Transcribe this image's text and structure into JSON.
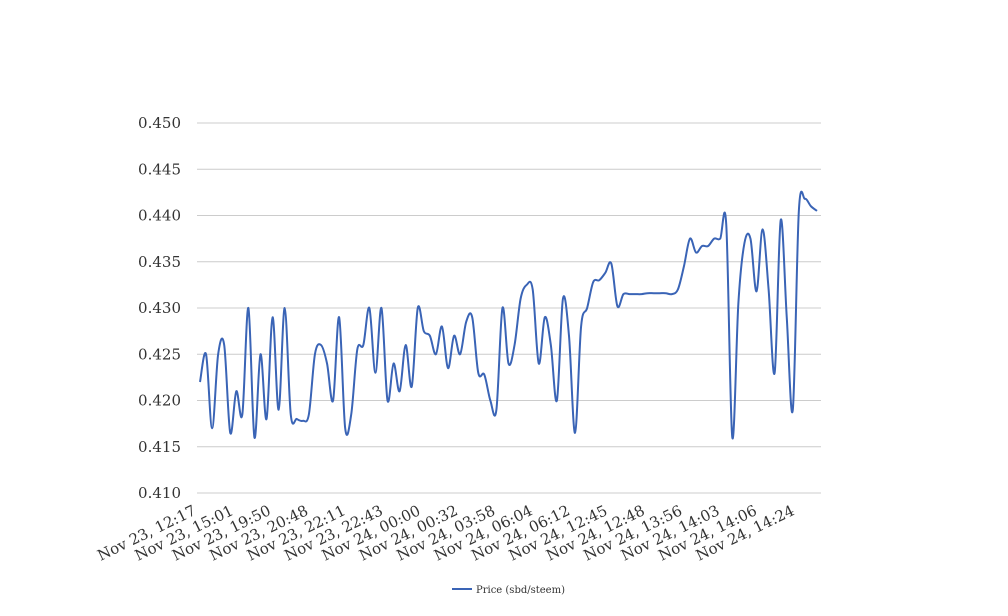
{
  "chart_data": {
    "type": "line",
    "title": "",
    "xlabel": "",
    "ylabel": "",
    "ylim": [
      0.41,
      0.45
    ],
    "yticks": [
      "0.410",
      "0.415",
      "0.420",
      "0.425",
      "0.430",
      "0.435",
      "0.440",
      "0.445",
      "0.450"
    ],
    "grid": true,
    "legend": "bottom",
    "series": [
      {
        "name": "Price (sbd/steem)",
        "color": "#3a64b6",
        "values": [
          0.422,
          0.425,
          0.417,
          0.425,
          0.426,
          0.4165,
          0.421,
          0.4185,
          0.43,
          0.416,
          0.425,
          0.418,
          0.429,
          0.419,
          0.43,
          0.4185,
          0.418,
          0.4178,
          0.4185,
          0.425,
          0.426,
          0.424,
          0.42,
          0.429,
          0.417,
          0.4185,
          0.4255,
          0.426,
          0.43,
          0.423,
          0.43,
          0.42,
          0.424,
          0.421,
          0.426,
          0.4215,
          0.43,
          0.4275,
          0.427,
          0.425,
          0.428,
          0.4235,
          0.427,
          0.425,
          0.4285,
          0.429,
          0.423,
          0.4228,
          0.42,
          0.419,
          0.43,
          0.424,
          0.426,
          0.431,
          0.4325,
          0.432,
          0.424,
          0.429,
          0.426,
          0.42,
          0.431,
          0.427,
          0.4165,
          0.428,
          0.43,
          0.4328,
          0.433,
          0.4338,
          0.4348,
          0.4302,
          0.4315,
          0.4315,
          0.4315,
          0.4315,
          0.4316,
          0.4316,
          0.4316,
          0.4316,
          0.4315,
          0.432,
          0.4345,
          0.4375,
          0.436,
          0.4367,
          0.4367,
          0.4375,
          0.4375,
          0.439,
          0.416,
          0.4305,
          0.437,
          0.4375,
          0.4318,
          0.4385,
          0.432,
          0.423,
          0.4395,
          0.429,
          0.419,
          0.4405,
          0.4418,
          0.441,
          0.4405
        ]
      }
    ],
    "x_tick_labels": [
      "Nov 23, 12:17",
      "Nov 23, 15:01",
      "Nov 23, 19:50",
      "Nov 23, 20:48",
      "Nov 23, 22:11",
      "Nov 23, 22:43",
      "Nov 24, 00:00",
      "Nov 24, 00:32",
      "Nov 24, 03:58",
      "Nov 24, 06:04",
      "Nov 24, 06:12",
      "Nov 24, 12:45",
      "Nov 24, 12:48",
      "Nov 24, 13:56",
      "Nov 24, 14:03",
      "Nov 24, 14:06",
      "Nov 24, 14:24"
    ]
  }
}
